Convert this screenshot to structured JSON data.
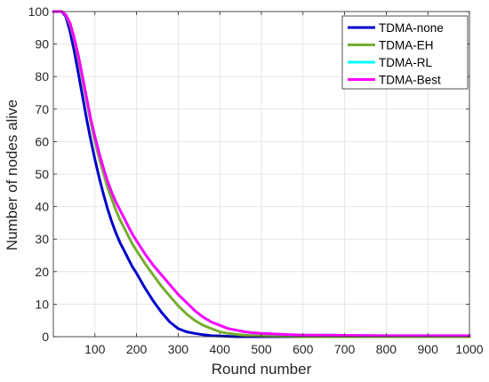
{
  "chart_data": {
    "type": "line",
    "title": "",
    "xlabel": "Round number",
    "ylabel": "Number of nodes alive",
    "xlim": [
      0,
      1000
    ],
    "ylim": [
      0,
      100
    ],
    "xticks": [
      100,
      200,
      300,
      400,
      500,
      600,
      700,
      800,
      900,
      1000
    ],
    "yticks": [
      0,
      10,
      20,
      30,
      40,
      50,
      60,
      70,
      80,
      90,
      100
    ],
    "grid": true,
    "legend_position": "top-right",
    "x": [
      0,
      20,
      30,
      40,
      50,
      60,
      70,
      80,
      90,
      100,
      110,
      120,
      130,
      140,
      150,
      160,
      170,
      180,
      190,
      200,
      220,
      240,
      260,
      280,
      300,
      320,
      340,
      360,
      380,
      400,
      420,
      440,
      460,
      480,
      500,
      550,
      600,
      650,
      700,
      800,
      900,
      1000
    ],
    "series": [
      {
        "name": "TDMA-none",
        "color": "#0000cc",
        "values": [
          100,
          100,
          98.5,
          94,
          88,
          81,
          74,
          67,
          60.5,
          54.5,
          49,
          44,
          39.5,
          35.5,
          32,
          29,
          26.5,
          24,
          21.5,
          19.5,
          15,
          11,
          7.5,
          4.5,
          2.5,
          1.5,
          1,
          0.6,
          0.3,
          0.2,
          0.1,
          0,
          0,
          0,
          0,
          0,
          0,
          0,
          0,
          0,
          0,
          0
        ]
      },
      {
        "name": "TDMA-EH",
        "color": "#77ac30",
        "values": [
          100,
          100,
          99,
          96,
          91.5,
          85.5,
          79,
          72.5,
          66,
          60,
          55,
          50.5,
          46,
          42.5,
          39,
          36,
          33.5,
          31,
          28.5,
          26.5,
          22.5,
          19,
          15.5,
          12.5,
          9.5,
          7,
          5,
          3.5,
          2.5,
          1.5,
          1,
          0.7,
          0.5,
          0.3,
          0.2,
          0.1,
          0,
          0,
          0,
          0,
          0,
          0
        ]
      },
      {
        "name": "TDMA-RL",
        "color": "#00ffff",
        "values": [
          100,
          100,
          99,
          96.5,
          92,
          86.5,
          80,
          73.5,
          67,
          61.5,
          56.5,
          52,
          48,
          44.5,
          41.5,
          39,
          36.5,
          34,
          31.5,
          29.5,
          25.5,
          22,
          19,
          16,
          13,
          10.5,
          8,
          6,
          4.5,
          3.5,
          2.5,
          2,
          1.5,
          1.2,
          1,
          0.7,
          0.5,
          0.5,
          0.4,
          0.3,
          0.3,
          0.3
        ]
      },
      {
        "name": "TDMA-Best",
        "color": "#ff00ff",
        "values": [
          100,
          100,
          99,
          96.5,
          92,
          86.5,
          80,
          73.5,
          67,
          61.5,
          56.5,
          52,
          48,
          44.5,
          41.5,
          39,
          36.5,
          34,
          31.5,
          29.5,
          25.5,
          22,
          19,
          16,
          13,
          10.5,
          8,
          6,
          4.5,
          3.5,
          2.5,
          2,
          1.5,
          1.2,
          1,
          0.7,
          0.5,
          0.5,
          0.4,
          0.3,
          0.3,
          0.3
        ]
      }
    ]
  }
}
